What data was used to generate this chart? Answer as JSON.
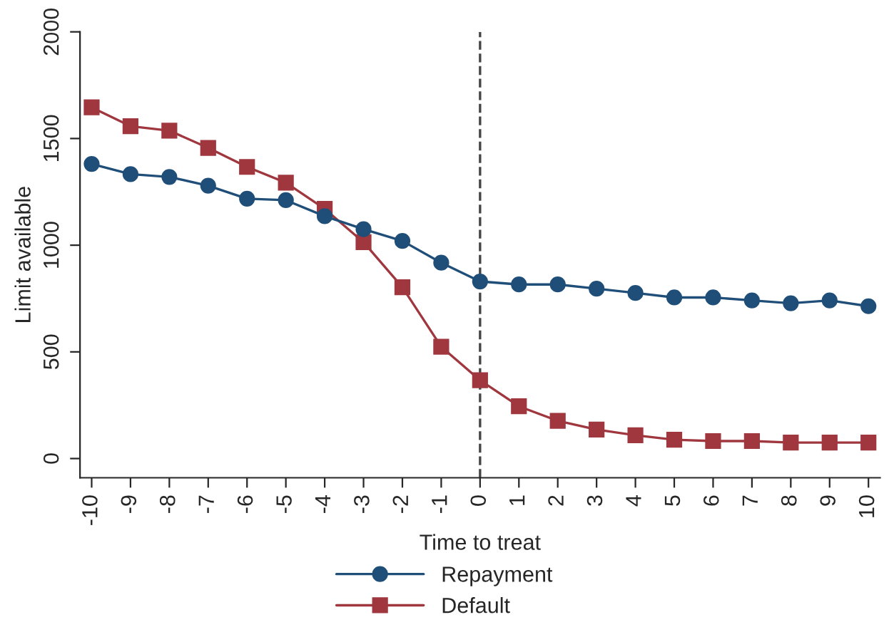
{
  "chart_data": {
    "type": "line",
    "xlabel": "Time to treat",
    "ylabel": "Limit available",
    "x": [
      -10,
      -9,
      -8,
      -7,
      -6,
      -5,
      -4,
      -3,
      -2,
      -1,
      0,
      1,
      2,
      3,
      4,
      5,
      6,
      7,
      8,
      9,
      10
    ],
    "series": [
      {
        "name": "Repayment",
        "color": "#1f4e79",
        "marker": "circle",
        "values": [
          1381,
          1333,
          1320,
          1279,
          1218,
          1211,
          1136,
          1075,
          1020,
          918,
          830,
          816,
          816,
          796,
          776,
          755,
          755,
          741,
          728,
          741,
          714
        ]
      },
      {
        "name": "Default",
        "color": "#a0373f",
        "marker": "square",
        "values": [
          1646,
          1558,
          1537,
          1456,
          1367,
          1293,
          1170,
          1014,
          803,
          524,
          367,
          245,
          177,
          136,
          109,
          88,
          82,
          82,
          75,
          75,
          75
        ]
      }
    ],
    "xlim": [
      -10.3,
      10.3
    ],
    "xticks": [
      -10,
      -9,
      -8,
      -7,
      -6,
      -5,
      -4,
      -3,
      -2,
      -1,
      0,
      1,
      2,
      3,
      4,
      5,
      6,
      7,
      8,
      9,
      10
    ],
    "ylim": [
      -90,
      2000
    ],
    "yticks": [
      0,
      500,
      1000,
      1500,
      2000
    ],
    "ref_lines": [
      {
        "axis": "x",
        "value": 0,
        "color": "#444444",
        "line_style": "dashed"
      }
    ],
    "legend": "bottom",
    "grid": false
  }
}
